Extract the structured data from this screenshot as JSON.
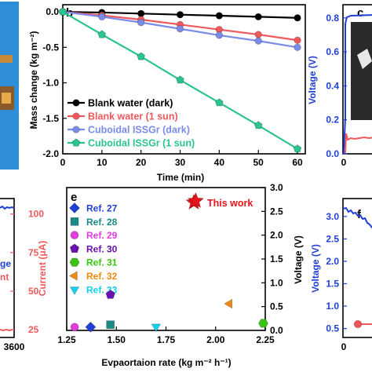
{
  "panels": {
    "b": "b",
    "c": "c",
    "e": "e",
    "f": "f"
  },
  "partial_labels": {
    "left_lower_legend_1": "ge",
    "left_lower_legend_2": "nt",
    "c_xtick_0": "0",
    "c_xtick_partial": "6",
    "f_xtick_0": "0",
    "f_xtick_partial": "1",
    "left_xtick": "3600"
  },
  "chart_data": [
    {
      "type": "line",
      "panel": "b",
      "xlabel": "Time (min)",
      "ylabel": "Mass change (kg m⁻²)",
      "xlim": [
        0,
        62
      ],
      "ylim": [
        -2.0,
        0.1
      ],
      "xticks": [
        "0",
        "10",
        "20",
        "30",
        "40",
        "50",
        "60"
      ],
      "yticks": [
        "0.0",
        "-0.5",
        "-1.0",
        "-1.5",
        "-2.0"
      ],
      "x": [
        0,
        10,
        20,
        30,
        40,
        50,
        60
      ],
      "legend_position": "bottom-left",
      "series": [
        {
          "name": "Blank water (dark)",
          "color": "#000000",
          "marker": "circle",
          "values": [
            0,
            -0.01,
            -0.025,
            -0.04,
            -0.055,
            -0.07,
            -0.085
          ]
        },
        {
          "name": "Blank water (1 sun)",
          "color": "#f0595b",
          "marker": "circle",
          "values": [
            0,
            -0.05,
            -0.11,
            -0.18,
            -0.25,
            -0.32,
            -0.4
          ]
        },
        {
          "name": "Cuboidal ISSGr (dark)",
          "color": "#7b8ce8",
          "marker": "circle",
          "values": [
            0,
            -0.07,
            -0.15,
            -0.24,
            -0.33,
            -0.41,
            -0.5
          ]
        },
        {
          "name": "Cuboidal ISSGr (1 sun)",
          "color": "#2bc48f",
          "marker": "pentagon",
          "values": [
            0,
            -0.32,
            -0.63,
            -0.96,
            -1.28,
            -1.6,
            -1.93
          ]
        }
      ]
    },
    {
      "type": "line",
      "panel": "c",
      "ylabel": "Voltage (V)",
      "yticks": [
        "0.8",
        "0.6",
        "0.4",
        "0.2",
        "0.0"
      ],
      "ylim": [
        0,
        0.85
      ],
      "axis_color": "#1f3fd6"
    },
    {
      "type": "scatter",
      "panel": "e",
      "xlabel": "Evpaortaion rate (kg m⁻² h⁻¹)",
      "ylabel": "Voltage (V)",
      "xlim": [
        1.25,
        2.25
      ],
      "ylim": [
        0,
        3.0
      ],
      "xticks": [
        "1.25",
        "1.50",
        "1.75",
        "2.00",
        "2.25"
      ],
      "yticks": [
        "0.0",
        "0.5",
        "1.0",
        "1.5",
        "2.0",
        "2.5",
        "3.0"
      ],
      "legend_position": "top-left",
      "series": [
        {
          "name": "Ref. 27",
          "color": "#1f3fd6",
          "marker": "diamond",
          "x": 1.37,
          "y": 0.07
        },
        {
          "name": "Ref. 28",
          "color": "#1a8a86",
          "marker": "square",
          "x": 1.47,
          "y": 0.12
        },
        {
          "name": "Ref. 29",
          "color": "#e23be0",
          "marker": "circle",
          "x": 1.29,
          "y": 0.07
        },
        {
          "name": "Ref. 30",
          "color": "#6a0fb0",
          "marker": "pentagon",
          "x": 1.47,
          "y": 0.75
        },
        {
          "name": "Ref. 31",
          "color": "#39c40f",
          "marker": "hexagon",
          "x": 2.24,
          "y": 0.15
        },
        {
          "name": "Ref. 32",
          "color": "#f08a12",
          "marker": "triangle-left",
          "x": 2.07,
          "y": 0.56
        },
        {
          "name": "Ref. 33",
          "color": "#12d0f0",
          "marker": "triangle-down",
          "x": 1.7,
          "y": 0.08
        },
        {
          "name": "This work",
          "color": "#e8121a",
          "marker": "star",
          "x": 1.9,
          "y": 2.72
        }
      ]
    },
    {
      "type": "line",
      "panel": "left-lower",
      "ylabel": "Current (μA)",
      "yticks": [
        "100",
        "75",
        "50",
        "25"
      ],
      "ylim": [
        20,
        110
      ],
      "axis_color": "#f0595b"
    },
    {
      "type": "line",
      "panel": "f",
      "ylabel": "Voltage (V)",
      "yticks": [
        "3.0",
        "2.5",
        "2.0",
        "1.5",
        "1.0",
        "0.5"
      ],
      "ylim": [
        0.3,
        3.4
      ],
      "axis_color": "#1f3fd6"
    }
  ]
}
